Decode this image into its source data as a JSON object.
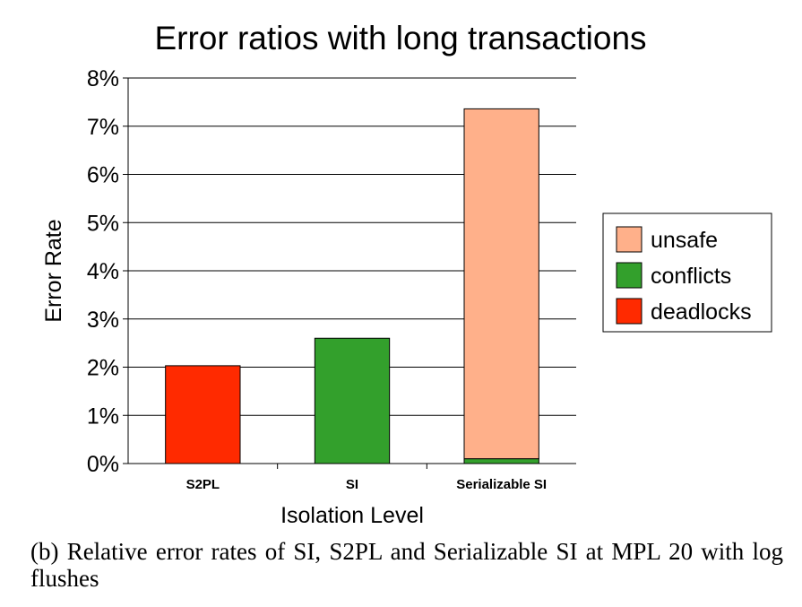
{
  "chart_data": {
    "type": "bar",
    "stacked": true,
    "title": "Error ratios with long transactions",
    "xlabel": "Isolation Level",
    "ylabel": "Error Rate",
    "categories": [
      "S2PL",
      "SI",
      "Serializable SI"
    ],
    "ylim": [
      0,
      8
    ],
    "yticks": [
      "0%",
      "1%",
      "2%",
      "3%",
      "4%",
      "5%",
      "6%",
      "7%",
      "8%"
    ],
    "grid": true,
    "legend_position": "right",
    "series": [
      {
        "name": "deadlocks",
        "color": "#ff2a00",
        "values": [
          2.03,
          0,
          0
        ]
      },
      {
        "name": "conflicts",
        "color": "#33a02c",
        "values": [
          0,
          2.6,
          0.1
        ]
      },
      {
        "name": "unsafe",
        "color": "#ffb08a",
        "values": [
          0,
          0,
          7.26
        ]
      }
    ],
    "legend_order": [
      "unsafe",
      "conflicts",
      "deadlocks"
    ]
  },
  "caption": "(b) Relative error rates of SI, S2PL and Serializable SI at MPL 20 with log flushes"
}
